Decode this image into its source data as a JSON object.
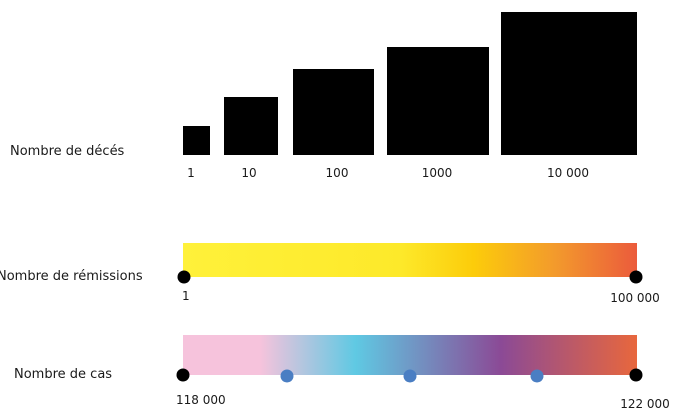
{
  "chart_data": [
    {
      "type": "bar",
      "label": "Nombre de décés",
      "categories": [
        "1",
        "10",
        "100",
        "1000",
        "10 000"
      ],
      "values": [
        1,
        10,
        100,
        1000,
        10000
      ],
      "color": "#000000"
    },
    {
      "type": "gradient-scale",
      "label": "Nombre de rémissions",
      "range": [
        1,
        100000
      ],
      "min_label": "1",
      "max_label": "100 000",
      "gradient_colors": [
        "#fff13a",
        "#fde92a",
        "#fccc0a",
        "#f39a2c",
        "#eb5b3c"
      ]
    },
    {
      "type": "gradient-scale",
      "label": "Nombre de cas",
      "range": [
        118000,
        122000
      ],
      "min_label": "118 000",
      "max_label": "122 000",
      "gradient_colors": [
        "#f6c3dc",
        "#f6c3dc",
        "#5fc9e3",
        "#8b4a96",
        "#e8673d"
      ],
      "marker_color": "#4a7ec3",
      "markers": [
        0.23,
        0.5,
        0.78
      ]
    }
  ]
}
